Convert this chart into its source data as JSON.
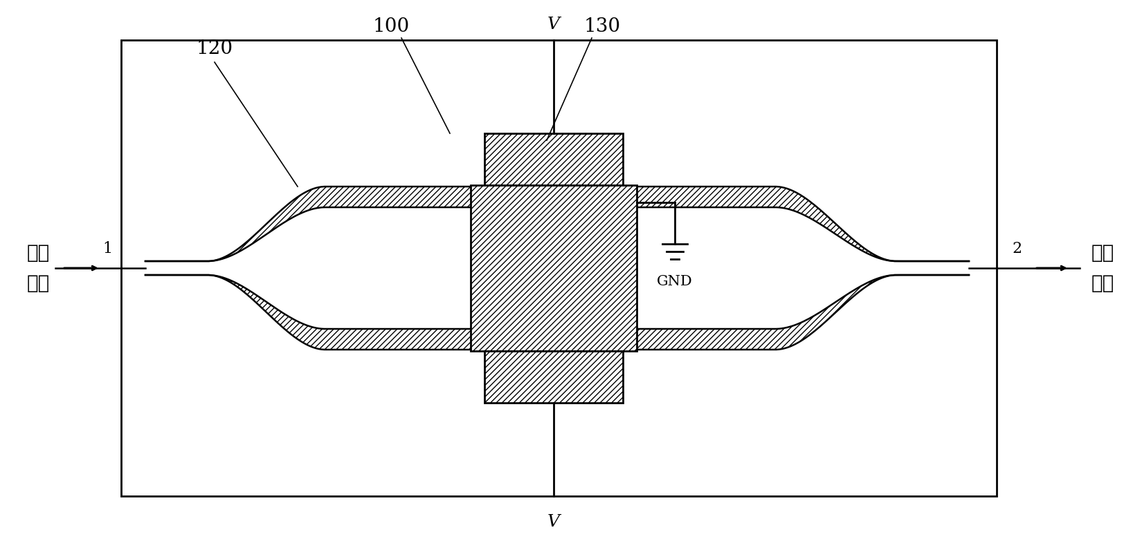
{
  "fig_width": 16.37,
  "fig_height": 7.96,
  "bg_color": "#ffffff",
  "label_120": "120",
  "label_100": "100",
  "label_130": "130",
  "label_V_top": "V",
  "label_V_bot": "V",
  "label_GND": "GND",
  "label_1": "1",
  "label_2": "2",
  "label_left_line1": "信号",
  "label_left_line2": "输入",
  "label_right_line1": "信号",
  "label_right_line2": "输出"
}
